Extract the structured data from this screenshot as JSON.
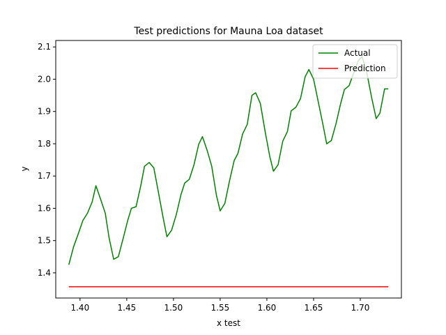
{
  "chart_data": {
    "type": "line",
    "title": "Test predictions for Mauna Loa dataset",
    "xlabel": "x test",
    "ylabel": "y",
    "xlim": [
      1.374,
      1.744
    ],
    "ylim": [
      1.322,
      2.12
    ],
    "xticks": [
      1.4,
      1.45,
      1.5,
      1.55,
      1.6,
      1.65,
      1.7
    ],
    "xtick_labels": [
      "1.40",
      "1.45",
      "1.50",
      "1.55",
      "1.60",
      "1.65",
      "1.70"
    ],
    "yticks": [
      1.4,
      1.5,
      1.6,
      1.7,
      1.8,
      1.9,
      2.0,
      2.1
    ],
    "ytick_labels": [
      "1.4",
      "1.5",
      "1.6",
      "1.7",
      "1.8",
      "1.9",
      "2.0",
      "2.1"
    ],
    "grid": false,
    "legend_position": "top-right",
    "series": [
      {
        "name": "Actual",
        "color": "#008000",
        "x": [
          1.388,
          1.393,
          1.398,
          1.403,
          1.408,
          1.413,
          1.417,
          1.422,
          1.427,
          1.431,
          1.436,
          1.441,
          1.446,
          1.451,
          1.455,
          1.46,
          1.465,
          1.469,
          1.474,
          1.479,
          1.484,
          1.489,
          1.493,
          1.498,
          1.503,
          1.508,
          1.512,
          1.517,
          1.522,
          1.527,
          1.531,
          1.536,
          1.541,
          1.546,
          1.55,
          1.555,
          1.56,
          1.565,
          1.569,
          1.574,
          1.579,
          1.584,
          1.588,
          1.593,
          1.598,
          1.603,
          1.607,
          1.612,
          1.617,
          1.622,
          1.626,
          1.631,
          1.636,
          1.641,
          1.645,
          1.65,
          1.655,
          1.66,
          1.664,
          1.669,
          1.674,
          1.679,
          1.683,
          1.688,
          1.693,
          1.698,
          1.702,
          1.707,
          1.712,
          1.717,
          1.721,
          1.726,
          1.73
        ],
        "y": [
          1.425,
          1.48,
          1.52,
          1.562,
          1.585,
          1.62,
          1.67,
          1.628,
          1.585,
          1.51,
          1.442,
          1.45,
          1.505,
          1.562,
          1.6,
          1.605,
          1.67,
          1.73,
          1.742,
          1.725,
          1.648,
          1.57,
          1.512,
          1.532,
          1.58,
          1.642,
          1.678,
          1.69,
          1.735,
          1.798,
          1.822,
          1.78,
          1.73,
          1.64,
          1.592,
          1.615,
          1.685,
          1.748,
          1.77,
          1.83,
          1.86,
          1.95,
          1.958,
          1.925,
          1.84,
          1.762,
          1.715,
          1.735,
          1.808,
          1.838,
          1.902,
          1.913,
          1.94,
          2.008,
          2.03,
          2.0,
          1.93,
          1.86,
          1.8,
          1.81,
          1.862,
          1.925,
          1.968,
          1.98,
          2.02,
          2.058,
          2.07,
          2.02,
          1.945,
          1.878,
          1.895,
          1.97,
          1.97
        ]
      },
      {
        "name": "Prediction",
        "color": "#ff0000",
        "x": [
          1.388,
          1.73
        ],
        "y": [
          1.357,
          1.357
        ]
      }
    ]
  }
}
